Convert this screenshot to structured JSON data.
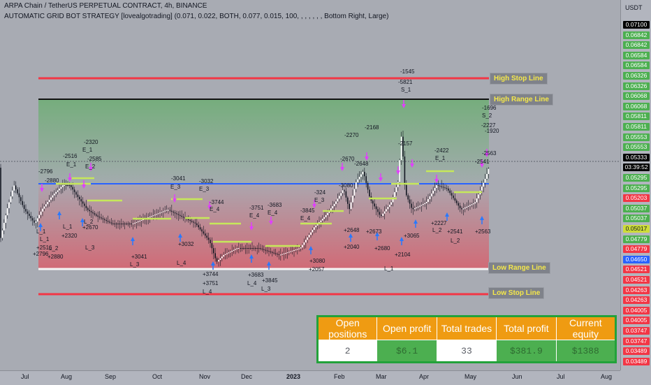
{
  "header": {
    "title": "ARPA Chain / TetherUS PERPETUAL CONTRACT, 4h, BINANCE",
    "indicator": "AUTOMATIC GRID BOT STRATEGY [lovealgotrading] (0.071, 0.022, BOTH, 0.077, 0.015, 100, , , , , , , Bottom Right, Large)"
  },
  "lines": {
    "high_stop": "High Stop Line",
    "high_range": "High Range Line",
    "low_range": "Low Range Line",
    "low_stop": "Low Stop Line"
  },
  "price_axis": {
    "currency": "USDT",
    "labels": [
      {
        "text": "0.07100",
        "bg": "#000000"
      },
      {
        "text": "0.06842",
        "bg": "#4caf50"
      },
      {
        "text": "0.06842",
        "bg": "#4caf50"
      },
      {
        "text": "0.06584",
        "bg": "#4caf50"
      },
      {
        "text": "0.06584",
        "bg": "#4caf50"
      },
      {
        "text": "0.06326",
        "bg": "#4caf50"
      },
      {
        "text": "0.06326",
        "bg": "#4caf50"
      },
      {
        "text": "0.06068",
        "bg": "#4caf50"
      },
      {
        "text": "0.06068",
        "bg": "#4caf50"
      },
      {
        "text": "0.05811",
        "bg": "#4caf50"
      },
      {
        "text": "0.05811",
        "bg": "#4caf50"
      },
      {
        "text": "0.05553",
        "bg": "#4caf50"
      },
      {
        "text": "0.05553",
        "bg": "#4caf50"
      },
      {
        "text": "0.05333",
        "bg": "#000000"
      },
      {
        "text": "03:39:52",
        "bg": "#000000"
      },
      {
        "text": "0.05295",
        "bg": "#4caf50"
      },
      {
        "text": "0.05295",
        "bg": "#4caf50"
      },
      {
        "text": "0.05203",
        "bg": "#f23645"
      },
      {
        "text": "0.05037",
        "bg": "#4caf50"
      },
      {
        "text": "0.05037",
        "bg": "#4caf50"
      },
      {
        "text": "0.05017",
        "bg": "#cddc39"
      },
      {
        "text": "0.04779",
        "bg": "#4caf50"
      },
      {
        "text": "0.04779",
        "bg": "#f23645"
      },
      {
        "text": "0.04650",
        "bg": "#2962ff"
      },
      {
        "text": "0.04521",
        "bg": "#f23645"
      },
      {
        "text": "0.04521",
        "bg": "#f23645"
      },
      {
        "text": "0.04263",
        "bg": "#f23645"
      },
      {
        "text": "0.04263",
        "bg": "#f23645"
      },
      {
        "text": "0.04005",
        "bg": "#f23645"
      },
      {
        "text": "0.04005",
        "bg": "#f23645"
      },
      {
        "text": "0.03747",
        "bg": "#f23645"
      },
      {
        "text": "0.03747",
        "bg": "#f23645"
      },
      {
        "text": "0.03489",
        "bg": "#f23645"
      },
      {
        "text": "0.03489",
        "bg": "#f23645"
      }
    ]
  },
  "time_axis": [
    "Jul",
    "Aug",
    "Sep",
    "Oct",
    "Nov",
    "Dec",
    "2023",
    "Feb",
    "Mar",
    "Apr",
    "May",
    "Jun",
    "Jul",
    "Aug"
  ],
  "annotations": {
    "top": [
      "-2796",
      "-2880",
      "-2516",
      "E_1",
      "-2320",
      "E_1",
      "-2585",
      "E_2",
      "-3041",
      "E_3",
      "-3032",
      "E_3",
      "-3744",
      "E_4",
      "-3751",
      "E_4",
      "-3683",
      "E_4",
      "-3845",
      "E_4",
      "-324",
      "E_3",
      "-3080",
      "-2270",
      "-2670",
      "-2648",
      "-2168",
      "-2157",
      "-1545",
      "-5821",
      "S_1",
      "-2422",
      "E_1",
      "-1696",
      "S_2",
      "-2227",
      "-1920",
      "-2563",
      "-2541"
    ],
    "bottom": [
      "L_1",
      "+2796",
      "L_2",
      "+2880",
      "L_1",
      "+2516",
      "L_1",
      "+2320",
      "L_2",
      "+2670",
      "L_3",
      "+3041",
      "L_3",
      "+3032",
      "L_4",
      "+3744",
      "+3751",
      "L_4",
      "+3683",
      "L_4",
      "+3845",
      "L_3",
      "+3080",
      "+2057",
      "+2648",
      "+2040",
      "+2673",
      "+2680",
      "+2104",
      "+3065",
      "L_1",
      "+2227",
      "L_2",
      "+2541",
      "L_2",
      "+2563"
    ]
  },
  "performance_table": {
    "headers": [
      "Open positions",
      "Open profit",
      "Total trades",
      "Total profit",
      "Current equity"
    ],
    "values": [
      "2",
      "$6.1",
      "33",
      "$381.9",
      "$1388"
    ]
  }
}
